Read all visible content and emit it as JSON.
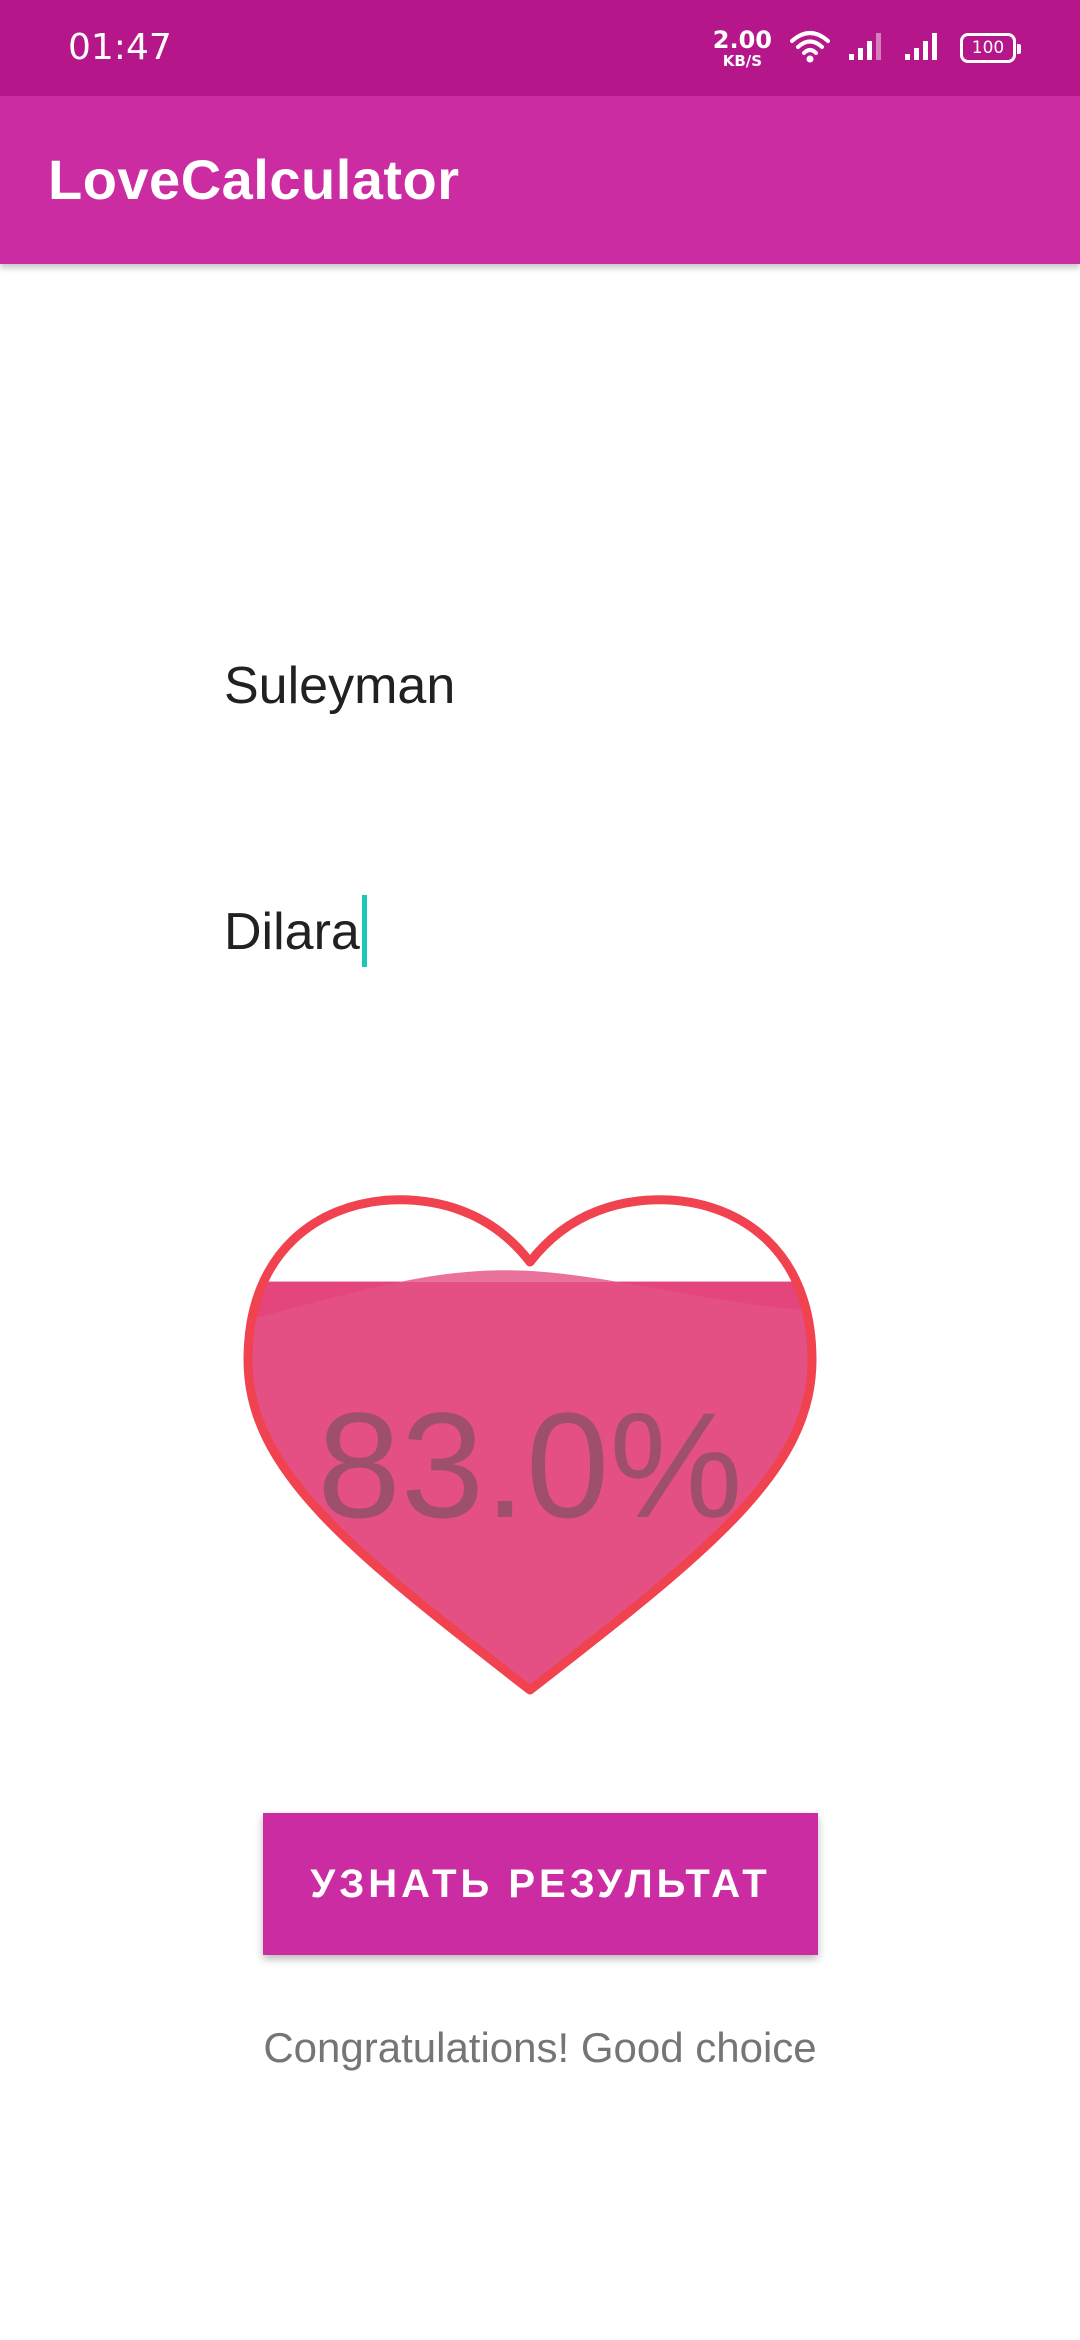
{
  "status_bar": {
    "time": "01:47",
    "net_speed_value": "2.00",
    "net_speed_unit": "KB/S",
    "battery": "100",
    "icons": [
      "wifi-icon",
      "signal-icon",
      "signal-icon",
      "battery-icon"
    ]
  },
  "app_bar": {
    "title": "LoveCalculator"
  },
  "form": {
    "first_name_value": "Suleyman",
    "second_name_value": "Dilara"
  },
  "result": {
    "percent_label": "83.0%",
    "fill_percent": 83.0,
    "message": "Congratulations! Good choice"
  },
  "button": {
    "label": "УЗНАТЬ РЕЗУЛЬТАТ"
  },
  "colors": {
    "status_bar": "#b5178b",
    "app_bar": "#cb2ca2",
    "heart_outline": "#f0424f",
    "heart_fill": "#e55084",
    "cursor": "#1ec8b8"
  }
}
